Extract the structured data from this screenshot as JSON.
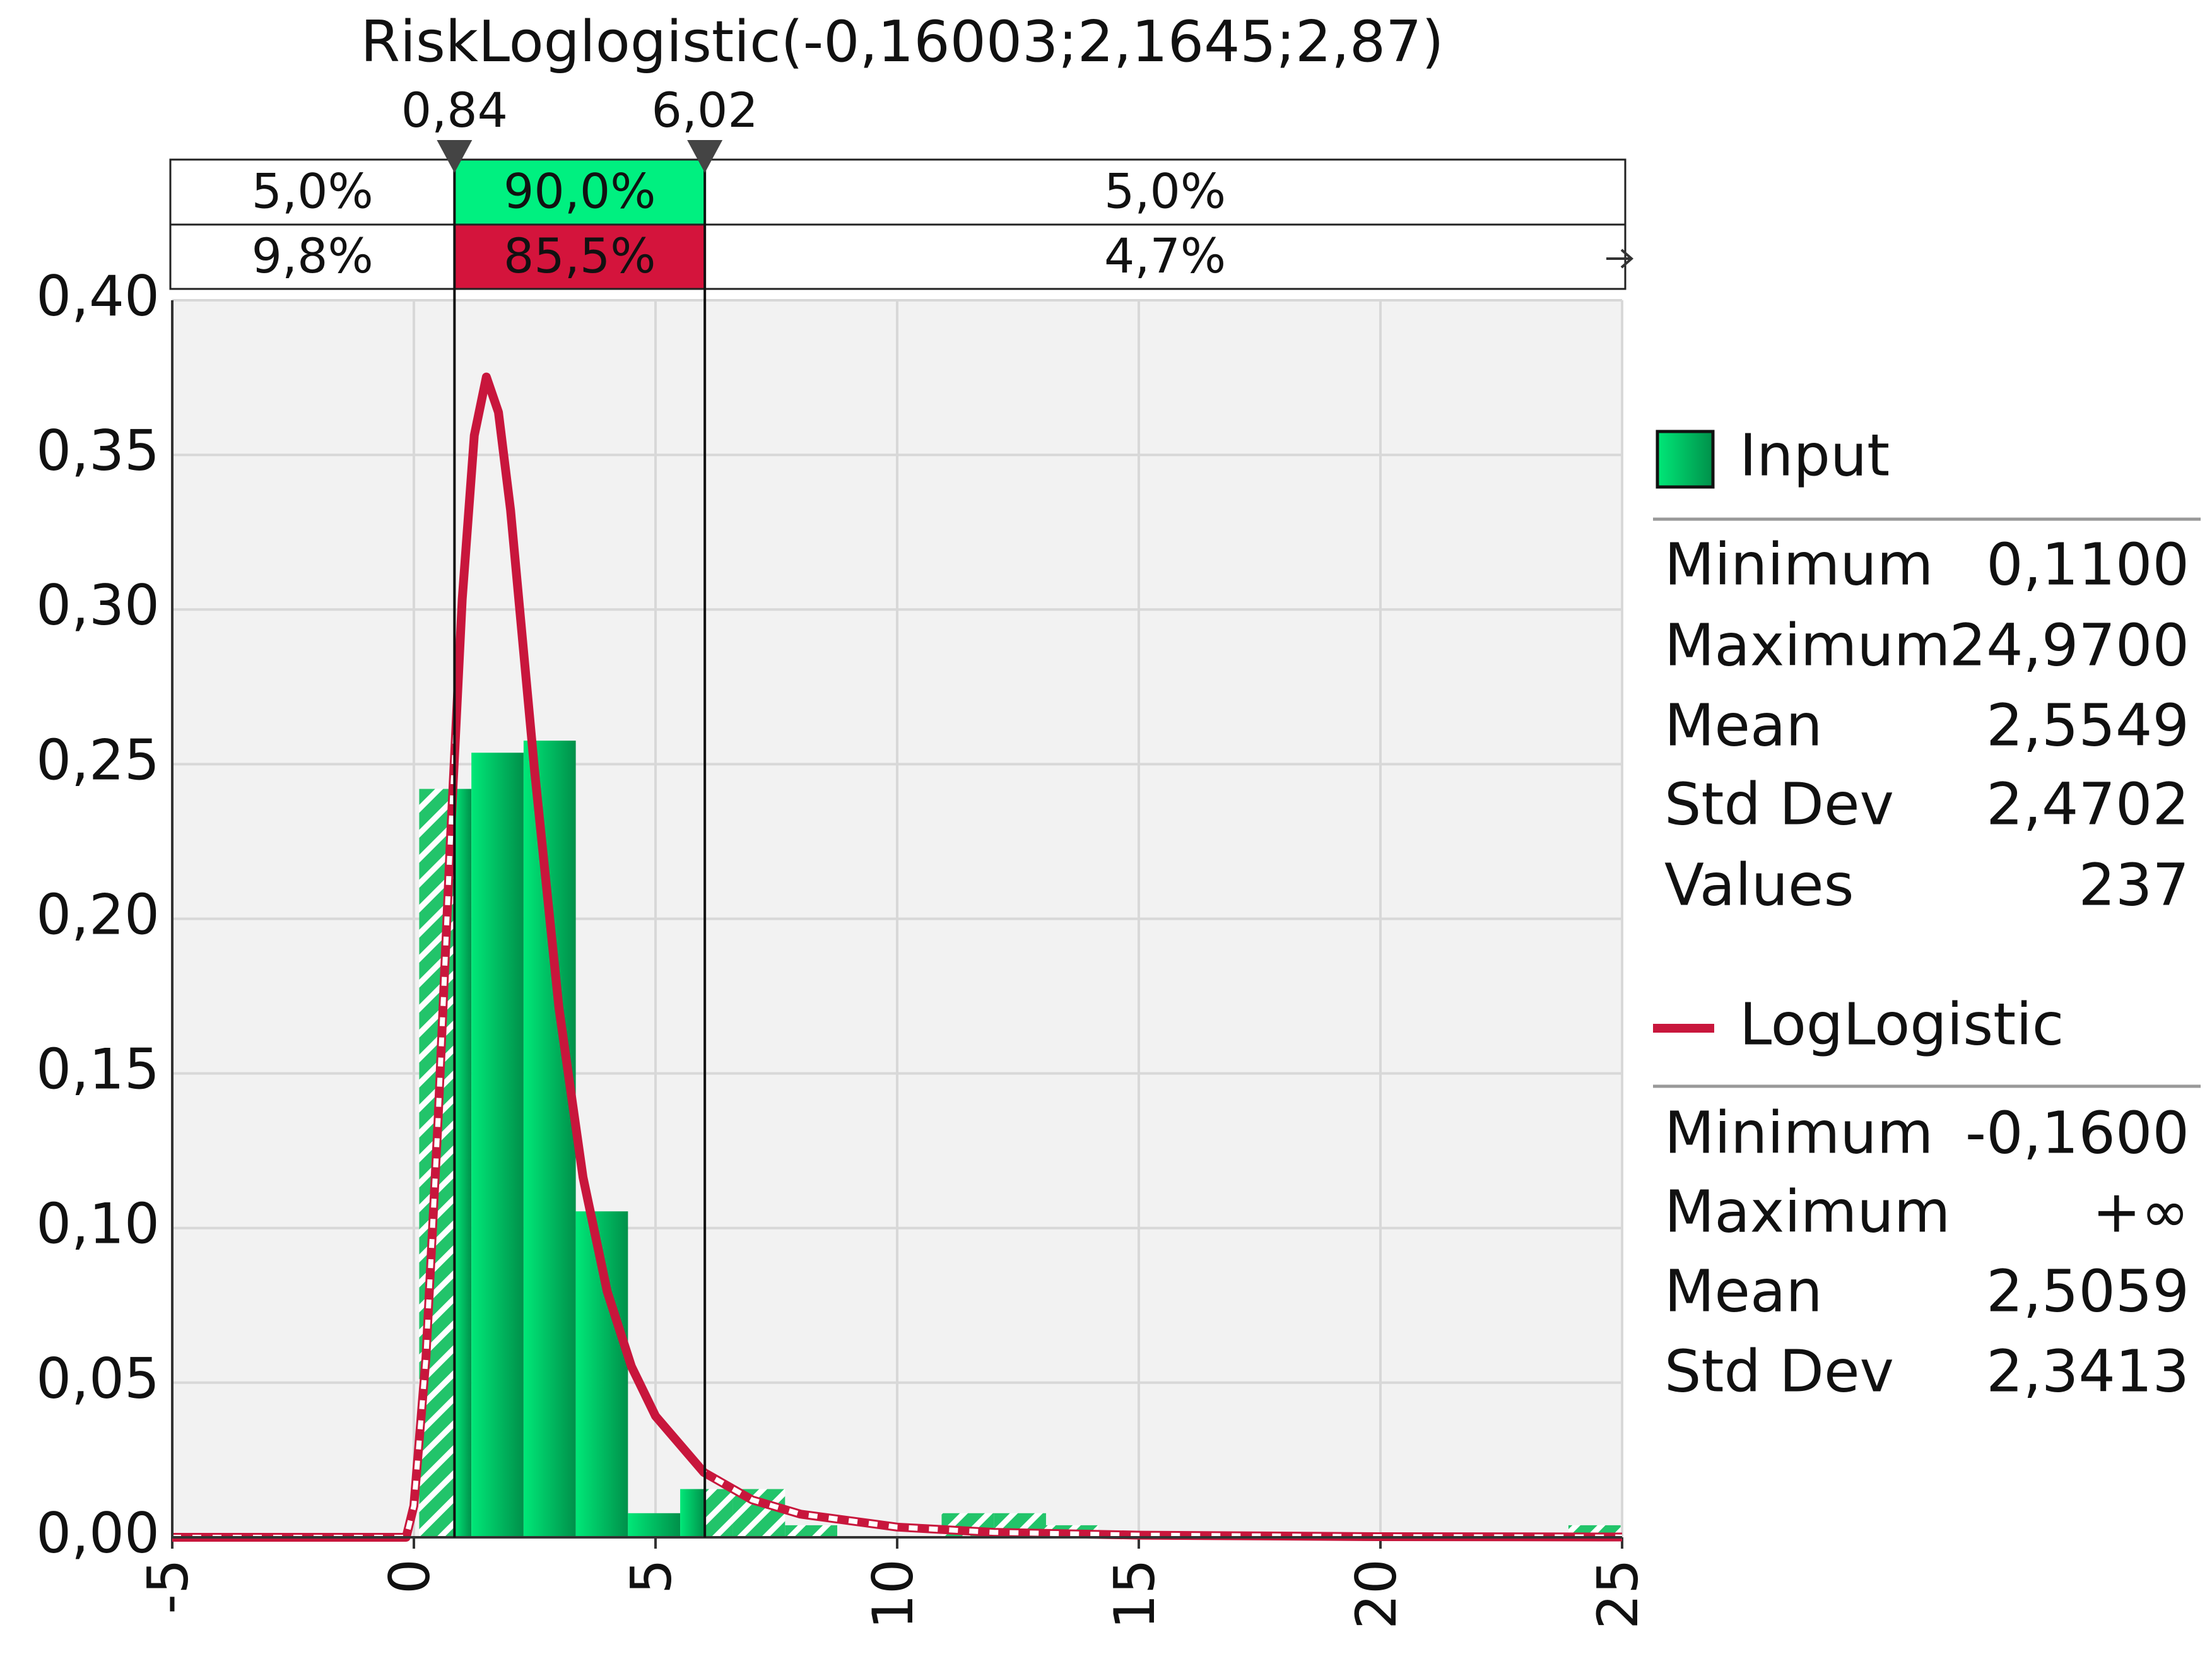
{
  "chart_data": {
    "type": "histogram",
    "title": "RiskLoglogistic(-0,16003;2,1645;2,87)",
    "name": "Input",
    "color": "#00c060",
    "bins": [
      0.11,
      1.19,
      2.27,
      3.35,
      4.43,
      5.51,
      6.6,
      7.68,
      8.76,
      9.84,
      10.92,
      12.0,
      13.08,
      14.16,
      15.24,
      16.32,
      17.4,
      18.48,
      19.57,
      20.65,
      21.73,
      22.81,
      23.89,
      24.97
    ],
    "values": [
      0.242,
      0.2537,
      0.2576,
      0.1054,
      0.0078,
      0.0156,
      0.0156,
      0.0039,
      0,
      0,
      0.0078,
      0.0078,
      0.0039,
      0,
      0,
      0,
      0,
      0,
      0,
      0,
      0,
      0,
      0.0039
    ],
    "fit": {
      "name": "LogLogistic",
      "color": "#c8163c",
      "x": [
        -5,
        -0.16,
        0,
        0.25,
        0.5,
        0.75,
        1,
        1.25,
        1.5,
        1.75,
        2,
        2.5,
        3,
        3.5,
        4,
        4.5,
        5,
        6,
        7,
        8,
        10,
        12,
        15,
        20,
        25
      ],
      "values": [
        0,
        0,
        0.0102,
        0.0582,
        0.1348,
        0.2236,
        0.3033,
        0.3563,
        0.3752,
        0.3638,
        0.3322,
        0.2475,
        0.1714,
        0.1164,
        0.0795,
        0.0553,
        0.0392,
        0.021,
        0.0121,
        0.0075,
        0.0033,
        0.0016,
        0.0007,
        0.0002,
        0.0001
      ]
    },
    "xlim": [
      -5,
      25
    ],
    "xticks": [
      -5,
      0,
      5,
      10,
      15,
      20,
      25
    ],
    "ylim": [
      0,
      0.4
    ],
    "yticks": [
      {
        "value": 0,
        "label": "0,00"
      },
      {
        "value": 0.05,
        "label": "0,05"
      },
      {
        "value": 0.1,
        "label": "0,10"
      },
      {
        "value": 0.15,
        "label": "0,15"
      },
      {
        "value": 0.2,
        "label": "0,20"
      },
      {
        "value": 0.25,
        "label": "0,25"
      },
      {
        "value": 0.3,
        "label": "0,30"
      },
      {
        "value": 0.35,
        "label": "0,35"
      },
      {
        "value": 0.4,
        "label": "0,40"
      }
    ],
    "grid": true,
    "delimiters": [
      {
        "value": 0.84,
        "label": "0,84"
      },
      {
        "value": 6.02,
        "label": "6,02"
      }
    ],
    "bands": {
      "input": [
        "5,0%",
        "90,0%",
        "5,0%"
      ],
      "fit": [
        "9,8%",
        "85,5%",
        "4,7%"
      ]
    },
    "stats": {
      "input": [
        [
          "Minimum",
          "0,1100"
        ],
        [
          "Maximum",
          "24,9700"
        ],
        [
          "Mean",
          "2,5549"
        ],
        [
          "Std Dev",
          "2,4702"
        ],
        [
          "Values",
          "237"
        ]
      ],
      "fit": [
        [
          "Minimum",
          "-0,1600"
        ],
        [
          "Maximum",
          "+∞"
        ],
        [
          "Mean",
          "2,5059"
        ],
        [
          "Std Dev",
          "2,3413"
        ]
      ]
    }
  }
}
